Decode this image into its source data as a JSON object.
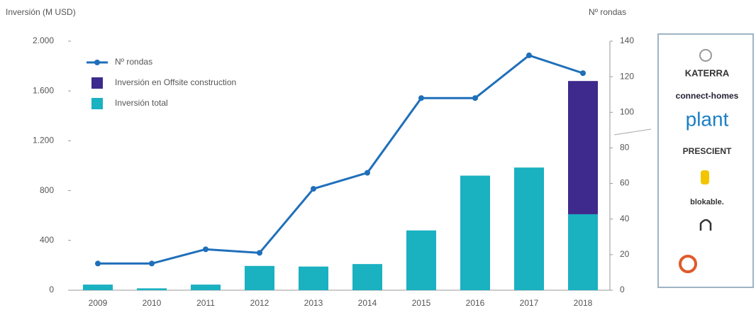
{
  "chart_data": {
    "type": "bar",
    "y_label": "Inversión (M USD)",
    "y2_label": "Nº rondas",
    "categories": [
      "2009",
      "2010",
      "2011",
      "2012",
      "2013",
      "2014",
      "2015",
      "2016",
      "2017",
      "2018"
    ],
    "series": [
      {
        "name": "Nº rondas",
        "type": "line",
        "axis": "y2",
        "color": "#1f6fba",
        "values": [
          15,
          15,
          23,
          21,
          57,
          66,
          108,
          108,
          132,
          122
        ]
      },
      {
        "name": "Inversión en Offsite construction",
        "type": "bar",
        "color": "#3d2a8c",
        "values": [
          null,
          null,
          null,
          null,
          null,
          null,
          null,
          null,
          null,
          1070
        ]
      },
      {
        "name": "Inversión total",
        "type": "bar",
        "color": "#1ab1c1",
        "values": [
          45,
          15,
          45,
          195,
          190,
          210,
          480,
          920,
          985,
          610
        ]
      }
    ],
    "ylim": [
      0,
      2000
    ],
    "yticks": [
      0,
      400,
      800,
      {
        "value": 1200,
        "label": "1.200"
      },
      {
        "value": 1600,
        "label": "1.600"
      },
      {
        "value": 2000,
        "label": "2.000"
      }
    ],
    "y2lim": [
      0,
      140
    ],
    "y2ticks": [
      0,
      20,
      40,
      60,
      80,
      100,
      120,
      140
    ],
    "legend": "top-left"
  },
  "logos": [
    "KATERRA",
    "connect-homes",
    "plant",
    "PRESCIENT",
    "blokable."
  ]
}
